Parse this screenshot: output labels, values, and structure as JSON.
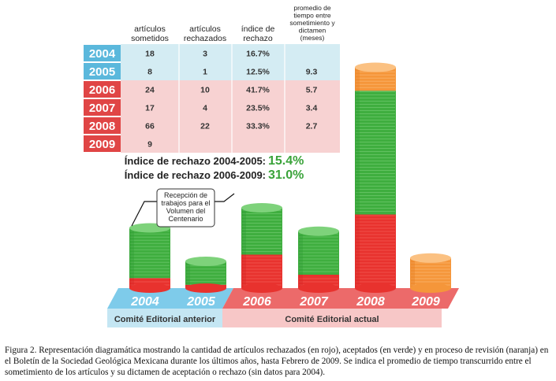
{
  "chart_data": {
    "type": "table+stacked-bar",
    "table": {
      "headers": [
        "artículos sometidos",
        "artículos rechazados",
        "índice de rechazo",
        "promedio de tiempo entre sometimiento y dictamen (meses)"
      ],
      "header_lines": [
        [
          "artículos",
          "sometidos"
        ],
        [
          "artículos",
          "rechazados"
        ],
        [
          "índice de",
          "rechazo"
        ],
        [
          "promedio de",
          "tiempo entre",
          "sometimiento y",
          "dictamen",
          "(meses)"
        ]
      ],
      "rows": [
        {
          "year": "2004",
          "sometidos": "18",
          "rechazados": "3",
          "indice": "16.7%",
          "promedio": ""
        },
        {
          "year": "2005",
          "sometidos": "8",
          "rechazados": "1",
          "indice": "12.5%",
          "promedio": "9.3"
        },
        {
          "year": "2006",
          "sometidos": "24",
          "rechazados": "10",
          "indice": "41.7%",
          "promedio": "5.7"
        },
        {
          "year": "2007",
          "sometidos": "17",
          "rechazados": "4",
          "indice": "23.5%",
          "promedio": "3.4"
        },
        {
          "year": "2008",
          "sometidos": "66",
          "rechazados": "22",
          "indice": "33.3%",
          "promedio": "2.7"
        },
        {
          "year": "2009",
          "sometidos": "9",
          "rechazados": "",
          "indice": "",
          "promedio": ""
        }
      ]
    },
    "summary": [
      {
        "label": "Índice de rechazo 2004-2005:",
        "value": "15.4%"
      },
      {
        "label": "Índice de rechazo 2006-2009:",
        "value": "31.0%"
      }
    ],
    "categories": [
      "2004",
      "2005",
      "2006",
      "2007",
      "2008",
      "2009"
    ],
    "series": [
      {
        "name": "rechazados",
        "color": "#e8322e",
        "values": [
          3,
          1,
          10,
          4,
          22,
          0
        ]
      },
      {
        "name": "aceptados",
        "color": "#3fae3f",
        "values": [
          15,
          7,
          14,
          13,
          37,
          0
        ]
      },
      {
        "name": "en proceso de revisión",
        "color": "#f5963a",
        "values": [
          0,
          0,
          0,
          0,
          7,
          9
        ]
      }
    ],
    "bands": [
      {
        "label": "Comité Editorial anterior",
        "years": [
          "2004",
          "2005"
        ],
        "color": "#7ecbea"
      },
      {
        "label": "Comité Editorial actual",
        "years": [
          "2006",
          "2007",
          "2008",
          "2009"
        ],
        "color": "#ec6a6a"
      }
    ],
    "callout_lines": [
      "Recepción de",
      "trabajos para el",
      "Volumen del",
      "Centenario"
    ]
  },
  "caption": "Figura 2. Representación diagramática mostrando la cantidad de artículos rechazados (en rojo), aceptados (en verde) y en proceso de revisión (naranja) en el Boletín de la Sociedad Geológica Mexicana durante los últimos años, hasta Febrero de 2009. Se indica el promedio de tiempo transcurrido entre el sometimiento de los artículos y su dictamen de aceptación o rechazo (sin datos para 2004)."
}
